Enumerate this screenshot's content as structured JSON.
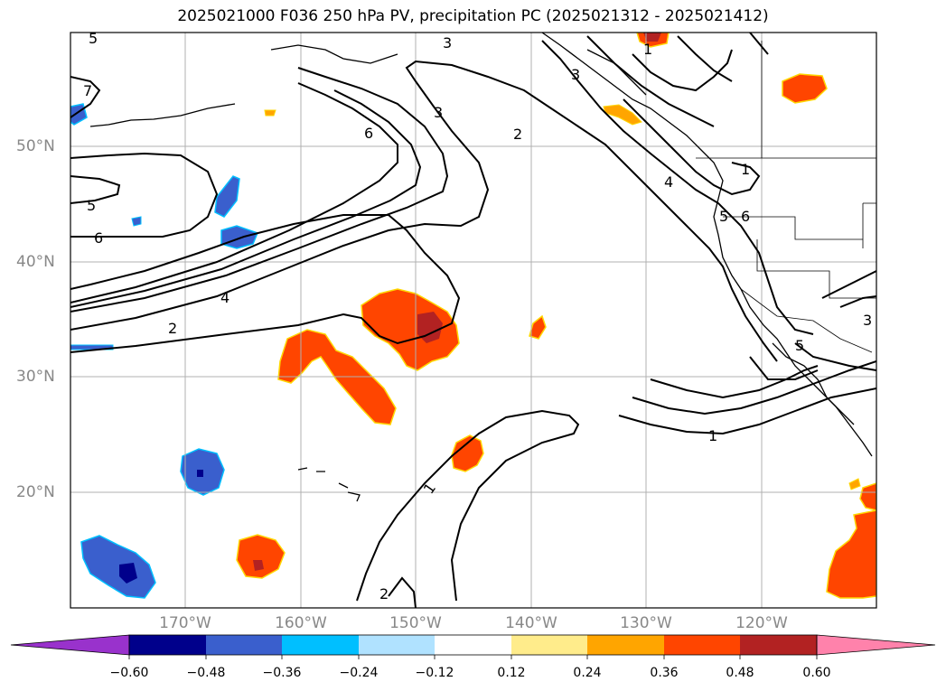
{
  "title": "2025021000 F036 250 hPa PV, precipitation PC (2025021312 - 2025021412)",
  "lat_labels": [
    "50°N",
    "40°N",
    "30°N",
    "20°N"
  ],
  "lon_labels": [
    "170°W",
    "160°W",
    "150°W",
    "140°W",
    "130°W",
    "120°W"
  ],
  "colorbar": {
    "ticks": [
      "−0.60",
      "−0.48",
      "−0.36",
      "−0.24",
      "−0.12",
      "0.12",
      "0.24",
      "0.36",
      "0.48",
      "0.60"
    ],
    "colors": [
      "#9932CC",
      "#00008B",
      "#3A5FCD",
      "#00BFFF",
      "#B0E2FF",
      "#FFFFFF",
      "#FFEC8B",
      "#FFA500",
      "#FF4500",
      "#B22222",
      "#FF82AB"
    ]
  },
  "contour_labels": [
    {
      "text": "5"
    },
    {
      "text": "7"
    },
    {
      "text": "5"
    },
    {
      "text": "6"
    },
    {
      "text": "4"
    },
    {
      "text": "2"
    },
    {
      "text": "6"
    },
    {
      "text": "3"
    },
    {
      "text": "3"
    },
    {
      "text": "2"
    },
    {
      "text": "3"
    },
    {
      "text": "1"
    },
    {
      "text": "4"
    },
    {
      "text": "5"
    },
    {
      "text": "6"
    },
    {
      "text": "1"
    },
    {
      "text": "1"
    },
    {
      "text": "2"
    },
    {
      "text": "3"
    },
    {
      "text": "5"
    }
  ]
}
